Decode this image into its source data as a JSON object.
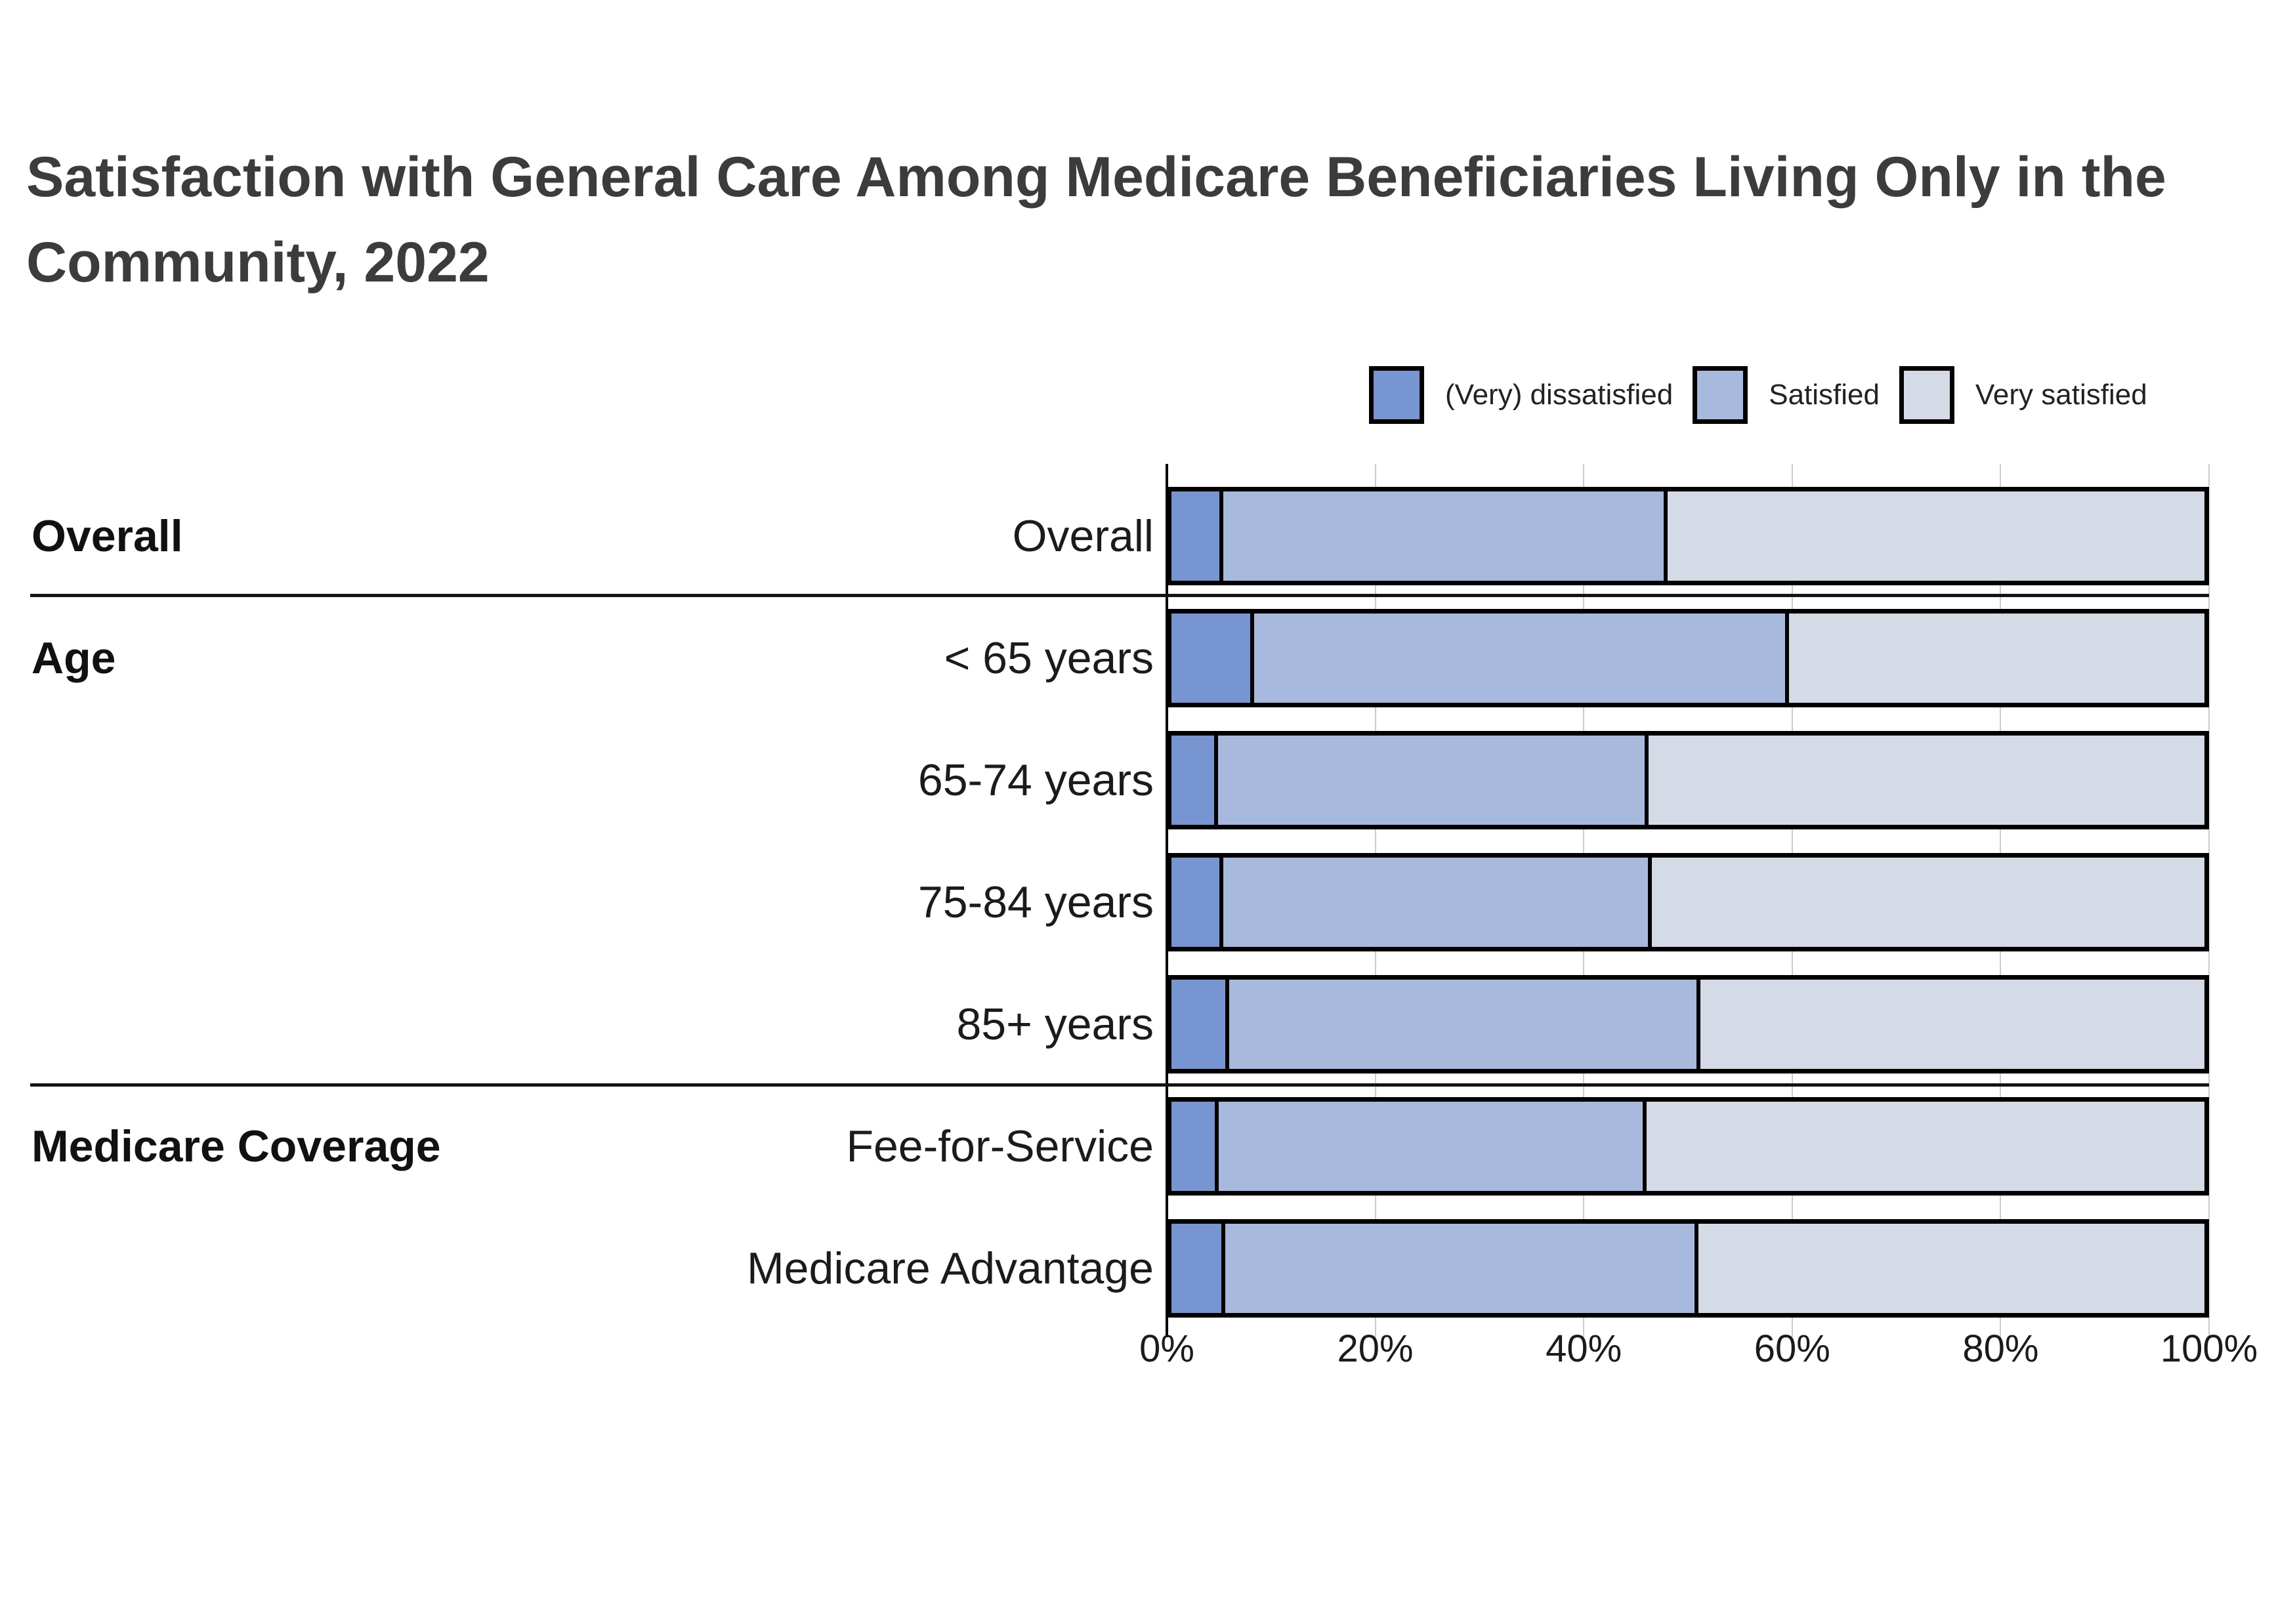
{
  "title": "Satisfaction with General Care Among Medicare Beneficiaries Living Only in the Community, 2022",
  "legend": {
    "items": [
      {
        "label": "(Very) dissatisfied",
        "color": "#7795d0"
      },
      {
        "label": "Satisfied",
        "color": "#a7badd"
      },
      {
        "label": "Very satisfied",
        "color": "#d4dae6"
      }
    ]
  },
  "colors": {
    "bar_border": "#000000",
    "gridline": "#cbcbcb",
    "separator": "#141414",
    "title_text": "#3c3c3c",
    "label_text": "#1b1b1b"
  },
  "chart_data": {
    "type": "bar",
    "stacked": true,
    "orientation": "horizontal",
    "title": "Satisfaction with General Care Among Medicare Beneficiaries Living Only in the Community, 2022",
    "unit": "percent",
    "xlim": [
      0,
      100
    ],
    "x_tick_labels": [
      "0%",
      "20%",
      "40%",
      "60%",
      "80%",
      "100%"
    ],
    "grid": true,
    "legend_position": "top-right",
    "series_names": [
      "(Very) dissatisfied",
      "Satisfied",
      "Very satisfied"
    ],
    "groups": [
      {
        "label": "Overall",
        "rows": [
          {
            "label": "Overall",
            "values": [
              5.0,
              43.0,
              52.0
            ]
          }
        ]
      },
      {
        "label": "Age",
        "rows": [
          {
            "label": "< 65 years",
            "values": [
              8.0,
              51.8,
              40.2
            ]
          },
          {
            "label": "65-74 years",
            "values": [
              4.5,
              41.7,
              53.8
            ]
          },
          {
            "label": "75-84 years",
            "values": [
              5.0,
              41.5,
              53.5
            ]
          },
          {
            "label": "85+ years",
            "values": [
              5.6,
              45.6,
              48.8
            ]
          }
        ]
      },
      {
        "label": "Medicare Coverage",
        "rows": [
          {
            "label": "Fee-for-Service",
            "values": [
              4.6,
              41.4,
              54.0
            ]
          },
          {
            "label": "Medicare Advantage",
            "values": [
              5.2,
              45.8,
              49.0
            ]
          }
        ]
      }
    ]
  }
}
